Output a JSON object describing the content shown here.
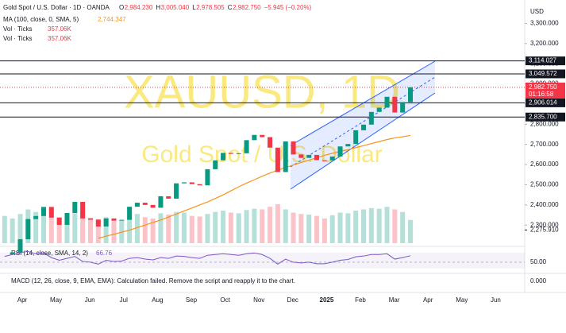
{
  "header": {
    "symbol": "Gold Spot / U.S. Dollar · 1D · OANDA",
    "ohlc": [
      "O",
      "2,984.230",
      "H",
      "3,005.040",
      "L",
      "2,978.505",
      "C",
      "2,982.750"
    ],
    "change": "−5.945 (−0.20%)",
    "ma_label": "MA (100, close, 0, SMA, 5)",
    "ma_value": "2,744.347",
    "vol_label": "Vol · Ticks",
    "vol_value": "357.06K",
    "vol_label_2": "Vol · Ticks",
    "vol_value_2": "357.06K",
    "currency": "USD",
    "watermark": "XAUUSD, 1D",
    "watermark_sub": "Gold Spot / U.S. Dollar",
    "last_price": "2,982.750",
    "countdown": "01:16:58",
    "rsi_label": "RSI (14, close, SMA, 14, 2)",
    "rsi_value": "66.76",
    "rsi_tick": "50.00",
    "macd_label": "MACD (12, 26, close, 9, EMA, EMA): Calculation failed. Remove the script and reapply it to the chart.",
    "macd_tick": "0.000"
  },
  "chart_data": {
    "type": "candlestick",
    "x_labels": [
      "Apr",
      "May",
      "Jun",
      "Jul",
      "Aug",
      "Sep",
      "Oct",
      "Nov",
      "Dec",
      "2025",
      "Feb",
      "Mar",
      "Apr",
      "May",
      "Jun"
    ],
    "ylim": [
      2230,
      3400
    ],
    "yticks": [
      {
        "value": 3300,
        "label": "3,300.000"
      },
      {
        "value": 3200,
        "label": "3,200.000"
      },
      {
        "value": 3100,
        "label": "3,100.000"
      },
      {
        "value": 3000,
        "label": "3,000.000"
      },
      {
        "value": 2900,
        "label": "2,900.000"
      },
      {
        "value": 2800,
        "label": "2,800.000"
      },
      {
        "value": 2700,
        "label": "2,700.000"
      },
      {
        "value": 2600,
        "label": "2,600.000"
      },
      {
        "value": 2500,
        "label": "2,500.000"
      },
      {
        "value": 2400,
        "label": "2,400.000"
      },
      {
        "value": 2300,
        "label": "2,300.000"
      }
    ],
    "levels": [
      {
        "value": 3114.027,
        "label": "3,114.027"
      },
      {
        "value": 3049.572,
        "label": "3,049.572"
      },
      {
        "value": 2906.014,
        "label": "2,906.014"
      },
      {
        "value": 2835.7,
        "label": "2,835.700"
      }
    ],
    "axis_marker": {
      "value": 2275.91,
      "label": "2,275.910"
    },
    "close": [
      2155,
      2165,
      2230,
      2330,
      2345,
      2390,
      2337,
      2301,
      2360,
      2415,
      2333,
      2327,
      2293,
      2333,
      2322,
      2326,
      2391,
      2411,
      2400,
      2386,
      2443,
      2431,
      2507,
      2512,
      2503,
      2497,
      2577,
      2621,
      2658,
      2653,
      2656,
      2721,
      2747,
      2736,
      2684,
      2563,
      2715,
      2650,
      2633,
      2648,
      2622,
      2621,
      2640,
      2690,
      2702,
      2770,
      2798,
      2861,
      2882,
      2936,
      2858,
      2910,
      2982.75
    ],
    "ma": [
      null,
      null,
      null,
      null,
      null,
      null,
      null,
      null,
      null,
      null,
      null,
      null,
      2235,
      2245,
      2255,
      2265,
      2275,
      2288,
      2300,
      2313,
      2325,
      2340,
      2355,
      2370,
      2385,
      2400,
      2415,
      2432,
      2450,
      2470,
      2490,
      2508,
      2525,
      2542,
      2558,
      2572,
      2585,
      2598,
      2610,
      2622,
      2634,
      2646,
      2656,
      2665,
      2674,
      2684,
      2694,
      2704,
      2714,
      2724,
      2732,
      2738,
      2744.347
    ],
    "volume": [
      420,
      380,
      450,
      520,
      480,
      500,
      430,
      400,
      380,
      460,
      410,
      390,
      370,
      400,
      360,
      350,
      420,
      450,
      400,
      380,
      460,
      440,
      480,
      470,
      420,
      410,
      450,
      480,
      500,
      470,
      460,
      510,
      530,
      520,
      560,
      600,
      520,
      470,
      450,
      440,
      420,
      380,
      430,
      470,
      460,
      500,
      520,
      540,
      530,
      560,
      520,
      480,
      357.06
    ],
    "volume_lim": [
      0,
      1100
    ],
    "rsi": [
      65,
      70,
      75,
      78,
      72,
      74,
      62,
      55,
      60,
      65,
      52,
      50,
      45,
      55,
      52,
      53,
      60,
      62,
      58,
      56,
      62,
      60,
      66,
      65,
      62,
      60,
      68,
      70,
      72,
      70,
      68,
      72,
      74,
      70,
      60,
      45,
      58,
      50,
      48,
      50,
      46,
      46,
      50,
      55,
      57,
      64,
      66,
      70,
      70,
      72,
      58,
      62,
      66.76
    ],
    "rsi_lim": [
      25,
      85
    ],
    "rsi_tick": 50,
    "colors": {
      "up": "#089981",
      "down": "#f23645",
      "ma": "#f7931a",
      "rsi": "#7e57c2",
      "channel": "#2962ff"
    }
  }
}
